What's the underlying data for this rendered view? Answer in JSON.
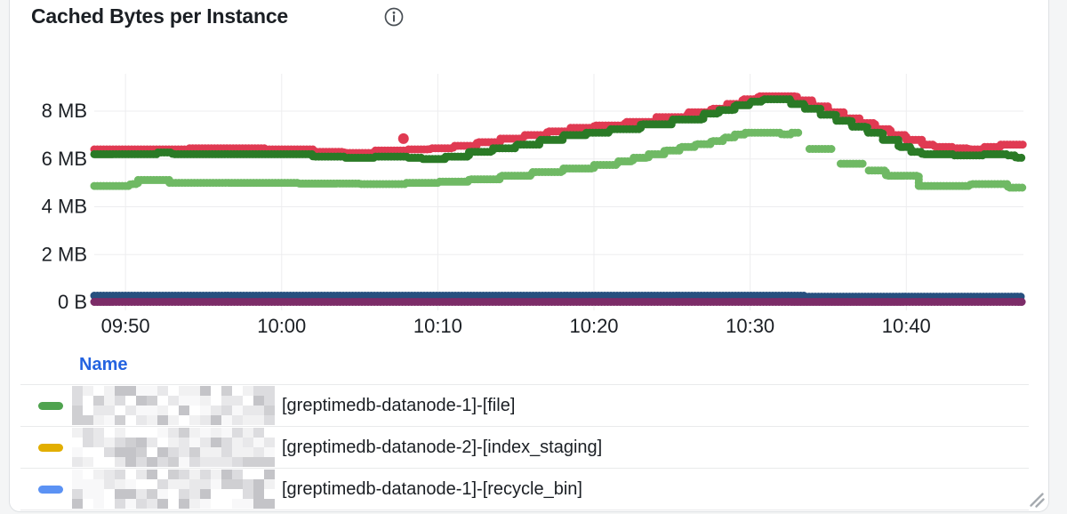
{
  "panel": {
    "title": "Cached Bytes per Instance"
  },
  "chart_data": {
    "type": "line",
    "title": "Cached Bytes per Instance",
    "x_axis": {
      "unit": "time",
      "range_minutes": [
        588,
        647.5
      ],
      "grid": true,
      "ticks": [
        {
          "minute": 590,
          "label": "09:50"
        },
        {
          "minute": 600,
          "label": "10:00"
        },
        {
          "minute": 610,
          "label": "10:10"
        },
        {
          "minute": 620,
          "label": "10:20"
        },
        {
          "minute": 630,
          "label": "10:30"
        },
        {
          "minute": 640,
          "label": "10:40"
        }
      ]
    },
    "y_axis": {
      "unit": "bytes",
      "range_mb": [
        0,
        10.2
      ],
      "grid": true,
      "ticks": [
        {
          "mb": 0,
          "label": "0 B"
        },
        {
          "mb": 2,
          "label": "2 MB"
        },
        {
          "mb": 4,
          "label": "4 MB"
        },
        {
          "mb": 6,
          "label": "6 MB"
        },
        {
          "mb": 8,
          "label": "8 MB"
        }
      ]
    },
    "series": [
      {
        "name": "red",
        "color": "#e03a52",
        "width": 9,
        "segments": [
          [
            [
              588,
              6.4
            ],
            [
              594,
              6.45
            ],
            [
              599,
              6.4
            ],
            [
              602,
              6.3
            ],
            [
              604,
              6.25
            ],
            [
              606,
              6.35
            ],
            [
              608,
              6.4
            ],
            [
              609.5,
              6.45
            ],
            [
              611,
              6.55
            ],
            [
              612.5,
              6.7
            ],
            [
              614,
              6.85
            ],
            [
              615.5,
              7.0
            ],
            [
              617,
              7.15
            ],
            [
              618.5,
              7.3
            ],
            [
              620,
              7.4
            ],
            [
              622,
              7.55
            ],
            [
              624,
              7.75
            ],
            [
              626,
              7.95
            ],
            [
              627.5,
              8.1
            ],
            [
              628.5,
              8.3
            ],
            [
              629.5,
              8.5
            ],
            [
              630.5,
              8.62
            ],
            [
              632.5,
              8.62
            ],
            [
              633,
              8.45
            ],
            [
              634,
              8.2
            ],
            [
              635,
              7.95
            ],
            [
              636,
              7.7
            ],
            [
              637,
              7.5
            ],
            [
              638,
              7.25
            ],
            [
              639,
              7.0
            ],
            [
              640,
              6.8
            ],
            [
              641,
              6.6
            ],
            [
              641.8,
              6.5
            ],
            [
              643,
              6.45
            ],
            [
              644,
              6.4
            ],
            [
              645,
              6.5
            ],
            [
              646,
              6.6
            ],
            [
              647.5,
              6.6
            ]
          ]
        ]
      },
      {
        "name": "dark-green",
        "color": "#2a7a26",
        "width": 9,
        "segments": [
          [
            [
              588,
              6.2
            ],
            [
              592,
              6.27
            ],
            [
              593,
              6.2
            ],
            [
              599,
              6.2
            ],
            [
              602,
              6.1
            ],
            [
              604,
              6.05
            ],
            [
              606,
              6.1
            ],
            [
              608,
              6.05
            ],
            [
              609,
              6.0
            ],
            [
              610.5,
              6.1
            ],
            [
              612,
              6.3
            ],
            [
              613.5,
              6.45
            ],
            [
              615,
              6.6
            ],
            [
              616.5,
              6.8
            ],
            [
              618,
              7.0
            ],
            [
              619.5,
              7.1
            ],
            [
              621,
              7.25
            ],
            [
              623,
              7.45
            ],
            [
              625,
              7.65
            ],
            [
              627,
              7.9
            ],
            [
              628,
              8.05
            ],
            [
              629,
              8.25
            ],
            [
              630,
              8.4
            ],
            [
              630.8,
              8.5
            ],
            [
              632,
              8.5
            ],
            [
              632.6,
              8.3
            ],
            [
              633.5,
              8.1
            ],
            [
              634.5,
              7.85
            ],
            [
              635.5,
              7.6
            ],
            [
              636.5,
              7.35
            ],
            [
              637.5,
              7.1
            ],
            [
              638.5,
              6.8
            ],
            [
              639.5,
              6.5
            ],
            [
              640.3,
              6.3
            ],
            [
              641,
              6.2
            ],
            [
              643,
              6.15
            ],
            [
              645,
              6.2
            ],
            [
              646.5,
              6.15
            ],
            [
              647,
              6.05
            ],
            [
              647.5,
              6.05
            ]
          ]
        ]
      },
      {
        "name": "light-green",
        "color": "#6fb964",
        "width": 9,
        "segments": [
          [
            [
              588,
              4.87
            ],
            [
              590.3,
              4.95
            ],
            [
              590.8,
              5.12
            ],
            [
              592.3,
              5.12
            ],
            [
              592.8,
              5.0
            ],
            [
              597,
              5.0
            ],
            [
              601,
              4.97
            ],
            [
              605,
              4.95
            ],
            [
              608,
              5.0
            ],
            [
              610,
              5.05
            ],
            [
              612,
              5.15
            ],
            [
              614,
              5.3
            ],
            [
              616,
              5.45
            ],
            [
              618,
              5.6
            ],
            [
              620,
              5.75
            ],
            [
              621.5,
              5.9
            ],
            [
              622.5,
              6.05
            ],
            [
              623.5,
              6.2
            ],
            [
              624.5,
              6.35
            ],
            [
              625.5,
              6.5
            ],
            [
              626.5,
              6.62
            ],
            [
              627.5,
              6.75
            ],
            [
              628.3,
              6.9
            ],
            [
              629,
              7.02
            ],
            [
              629.7,
              7.1
            ],
            [
              631.5,
              7.1
            ],
            [
              632,
              7.03
            ],
            [
              632.6,
              7.1
            ],
            [
              633.2,
              7.1
            ]
          ],
          [
            [
              633.8,
              6.42
            ],
            [
              635.2,
              6.42
            ]
          ],
          [
            [
              635.8,
              5.8
            ],
            [
              637.2,
              5.8
            ]
          ],
          [
            [
              637.6,
              5.52
            ],
            [
              638.4,
              5.52
            ],
            [
              638.7,
              5.3
            ],
            [
              640.5,
              5.3
            ],
            [
              640.8,
              4.87
            ],
            [
              643.8,
              4.87
            ],
            [
              644.1,
              4.95
            ],
            [
              646.2,
              4.95
            ],
            [
              646.5,
              4.8
            ],
            [
              647.5,
              4.8
            ]
          ]
        ]
      },
      {
        "name": "dark-blue",
        "color": "#27507f",
        "width": 9,
        "segments": [
          [
            [
              588,
              0.28
            ],
            [
              633,
              0.28
            ],
            [
              633.5,
              0.24
            ],
            [
              647.5,
              0.24
            ]
          ]
        ]
      },
      {
        "name": "purple",
        "color": "#7c2c68",
        "width": 9,
        "segments": [
          [
            [
              588,
              0.02
            ],
            [
              647.5,
              0.02
            ]
          ]
        ]
      }
    ],
    "outliers": [
      {
        "series": "red",
        "minute": 607.8,
        "mb": 6.85
      }
    ]
  },
  "legend": {
    "header": "Name",
    "rows": [
      {
        "dash_color": "#4fa34f",
        "redacted": true,
        "label": "[greptimedb-datanode-1]-[file]"
      },
      {
        "dash_color": "#e2ae00",
        "redacted": true,
        "label": "[greptimedb-datanode-2]-[index_staging]"
      },
      {
        "dash_color": "#5b92f4",
        "redacted": true,
        "label": "[greptimedb-datanode-1]-[recycle_bin]"
      }
    ]
  }
}
